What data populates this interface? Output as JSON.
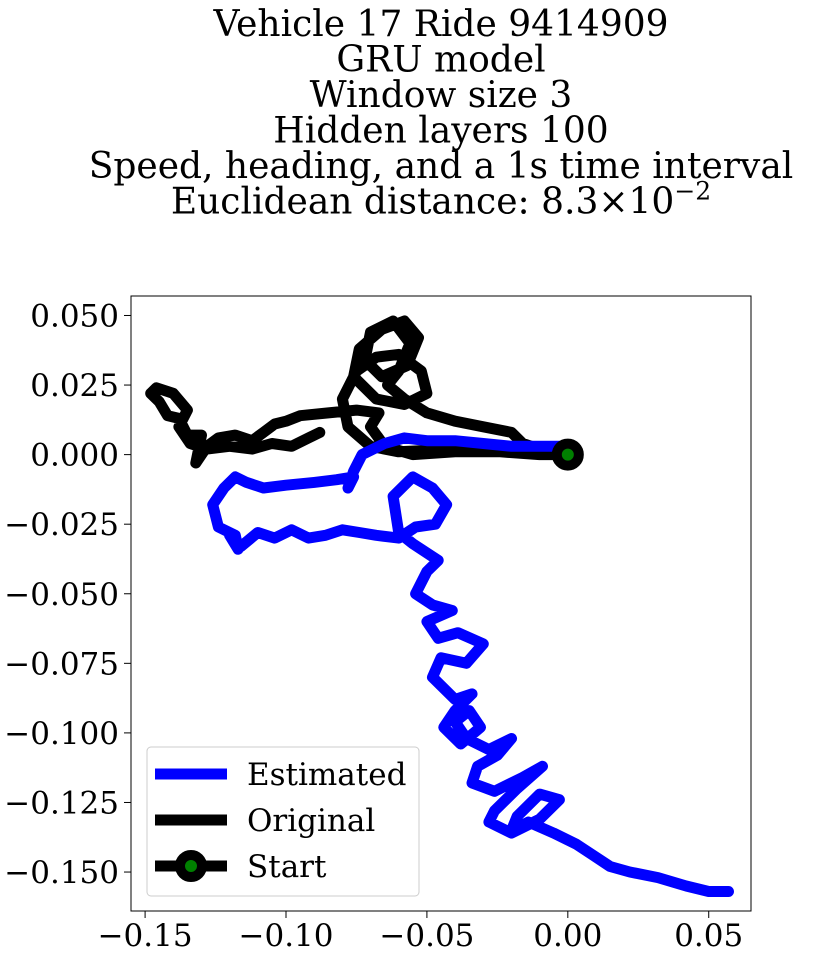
{
  "chart_data": {
    "type": "line",
    "title_lines": [
      "Vehicle 17 Ride 9414909",
      "GRU model",
      "Window size 3",
      "Hidden layers 100",
      "Speed, heading, and a 1s time interval",
      "Euclidean distance: 8.3×10"
    ],
    "title_exponent": "−2",
    "xlim": [
      -0.155,
      0.065
    ],
    "ylim": [
      -0.164,
      0.057
    ],
    "x_ticks": [
      {
        "value": -0.15,
        "label": "−0.15"
      },
      {
        "value": -0.1,
        "label": "−0.10"
      },
      {
        "value": -0.05,
        "label": "−0.05"
      },
      {
        "value": 0.0,
        "label": "0.00"
      },
      {
        "value": 0.05,
        "label": "0.05"
      }
    ],
    "y_ticks": [
      {
        "value": 0.05,
        "label": "0.050"
      },
      {
        "value": 0.025,
        "label": "0.025"
      },
      {
        "value": 0.0,
        "label": "0.000"
      },
      {
        "value": -0.025,
        "label": "−0.025"
      },
      {
        "value": -0.05,
        "label": "−0.050"
      },
      {
        "value": -0.075,
        "label": "−0.075"
      },
      {
        "value": -0.1,
        "label": "−0.100"
      },
      {
        "value": -0.125,
        "label": "−0.125"
      },
      {
        "value": -0.15,
        "label": "−0.150"
      }
    ],
    "grid": false,
    "legend_position": "lower-left",
    "legend": [
      "Estimated",
      "Original",
      "Start"
    ],
    "series": [
      {
        "name": "Original",
        "color": "#000000",
        "x": [
          0.0,
          -0.01,
          -0.02,
          -0.04,
          -0.06,
          -0.07,
          -0.078,
          -0.08,
          -0.075,
          -0.068,
          -0.06,
          -0.052,
          -0.05,
          -0.058,
          -0.068,
          -0.076,
          -0.074,
          -0.066,
          -0.058,
          -0.053,
          -0.057,
          -0.066,
          -0.072,
          -0.07,
          -0.062,
          -0.056,
          -0.06,
          -0.064,
          -0.058,
          -0.05,
          -0.04,
          -0.03,
          -0.02,
          -0.016,
          -0.01,
          -0.004,
          0.0,
          -0.01,
          -0.024,
          -0.04,
          -0.055,
          -0.065,
          -0.07,
          -0.067,
          -0.075,
          -0.085,
          -0.095,
          -0.1,
          -0.104,
          -0.108,
          -0.112,
          -0.118,
          -0.124,
          -0.128,
          -0.132,
          -0.13,
          -0.135,
          -0.138,
          -0.142,
          -0.145,
          -0.148,
          -0.146,
          -0.14,
          -0.135,
          -0.138,
          -0.134,
          -0.128,
          -0.12,
          -0.112,
          -0.105,
          -0.098,
          -0.092,
          -0.088
        ],
        "y": [
          0.0,
          0.001,
          0.001,
          0.002,
          0.001,
          0.003,
          0.01,
          0.02,
          0.03,
          0.035,
          0.036,
          0.03,
          0.022,
          0.018,
          0.02,
          0.028,
          0.038,
          0.045,
          0.048,
          0.042,
          0.032,
          0.028,
          0.034,
          0.044,
          0.048,
          0.04,
          0.03,
          0.025,
          0.02,
          0.015,
          0.012,
          0.01,
          0.008,
          0.004,
          0.002,
          0.001,
          0.0,
          0.0,
          0.001,
          0.001,
          0.0,
          0.003,
          0.01,
          0.015,
          0.016,
          0.015,
          0.014,
          0.012,
          0.011,
          0.008,
          0.005,
          0.007,
          0.006,
          0.003,
          -0.003,
          0.007,
          0.007,
          0.013,
          0.014,
          0.019,
          0.022,
          0.024,
          0.022,
          0.016,
          0.01,
          0.004,
          0.002,
          0.003,
          0.002,
          0.004,
          0.003,
          0.006,
          0.008
        ]
      },
      {
        "name": "Estimated",
        "color": "#0000ff",
        "x": [
          0.0,
          -0.01,
          -0.02,
          -0.03,
          -0.04,
          -0.05,
          -0.058,
          -0.065,
          -0.073,
          -0.076,
          -0.078,
          -0.076,
          -0.082,
          -0.09,
          -0.1,
          -0.108,
          -0.114,
          -0.118,
          -0.122,
          -0.126,
          -0.124,
          -0.118,
          -0.117,
          -0.12,
          -0.116,
          -0.11,
          -0.104,
          -0.098,
          -0.092,
          -0.086,
          -0.08,
          -0.074,
          -0.068,
          -0.06,
          -0.054,
          -0.047,
          -0.043,
          -0.048,
          -0.055,
          -0.062,
          -0.06,
          -0.055,
          -0.046,
          -0.05,
          -0.054,
          -0.048,
          -0.041,
          -0.05,
          -0.046,
          -0.039,
          -0.03,
          -0.036,
          -0.045,
          -0.048,
          -0.04,
          -0.034,
          -0.04,
          -0.044,
          -0.038,
          -0.031,
          -0.035,
          -0.04,
          -0.036,
          -0.028,
          -0.02,
          -0.025,
          -0.032,
          -0.034,
          -0.026,
          -0.016,
          -0.009,
          -0.018,
          -0.026,
          -0.028,
          -0.02,
          -0.01,
          -0.003,
          -0.01,
          -0.018,
          -0.02,
          -0.014,
          -0.005,
          0.003,
          0.009,
          0.015,
          0.022,
          0.032,
          0.042,
          0.05,
          0.057
        ],
        "y": [
          0.003,
          0.003,
          0.003,
          0.004,
          0.005,
          0.005,
          0.006,
          0.004,
          0.0,
          -0.006,
          -0.012,
          -0.008,
          -0.009,
          -0.01,
          -0.011,
          -0.012,
          -0.01,
          -0.008,
          -0.012,
          -0.018,
          -0.026,
          -0.029,
          -0.034,
          -0.029,
          -0.033,
          -0.028,
          -0.03,
          -0.027,
          -0.03,
          -0.029,
          -0.027,
          -0.028,
          -0.029,
          -0.03,
          -0.026,
          -0.025,
          -0.018,
          -0.012,
          -0.008,
          -0.015,
          -0.028,
          -0.032,
          -0.038,
          -0.042,
          -0.05,
          -0.054,
          -0.056,
          -0.06,
          -0.066,
          -0.064,
          -0.068,
          -0.075,
          -0.073,
          -0.08,
          -0.088,
          -0.086,
          -0.092,
          -0.098,
          -0.104,
          -0.098,
          -0.092,
          -0.096,
          -0.102,
          -0.106,
          -0.102,
          -0.108,
          -0.112,
          -0.118,
          -0.121,
          -0.116,
          -0.112,
          -0.12,
          -0.128,
          -0.132,
          -0.136,
          -0.131,
          -0.124,
          -0.122,
          -0.13,
          -0.135,
          -0.132,
          -0.136,
          -0.14,
          -0.144,
          -0.148,
          -0.15,
          -0.152,
          -0.155,
          -0.157,
          -0.157
        ]
      }
    ],
    "start_point": {
      "x": 0.0,
      "y": 0.0,
      "marker_color": "#008000",
      "edge_color": "#000000"
    }
  }
}
